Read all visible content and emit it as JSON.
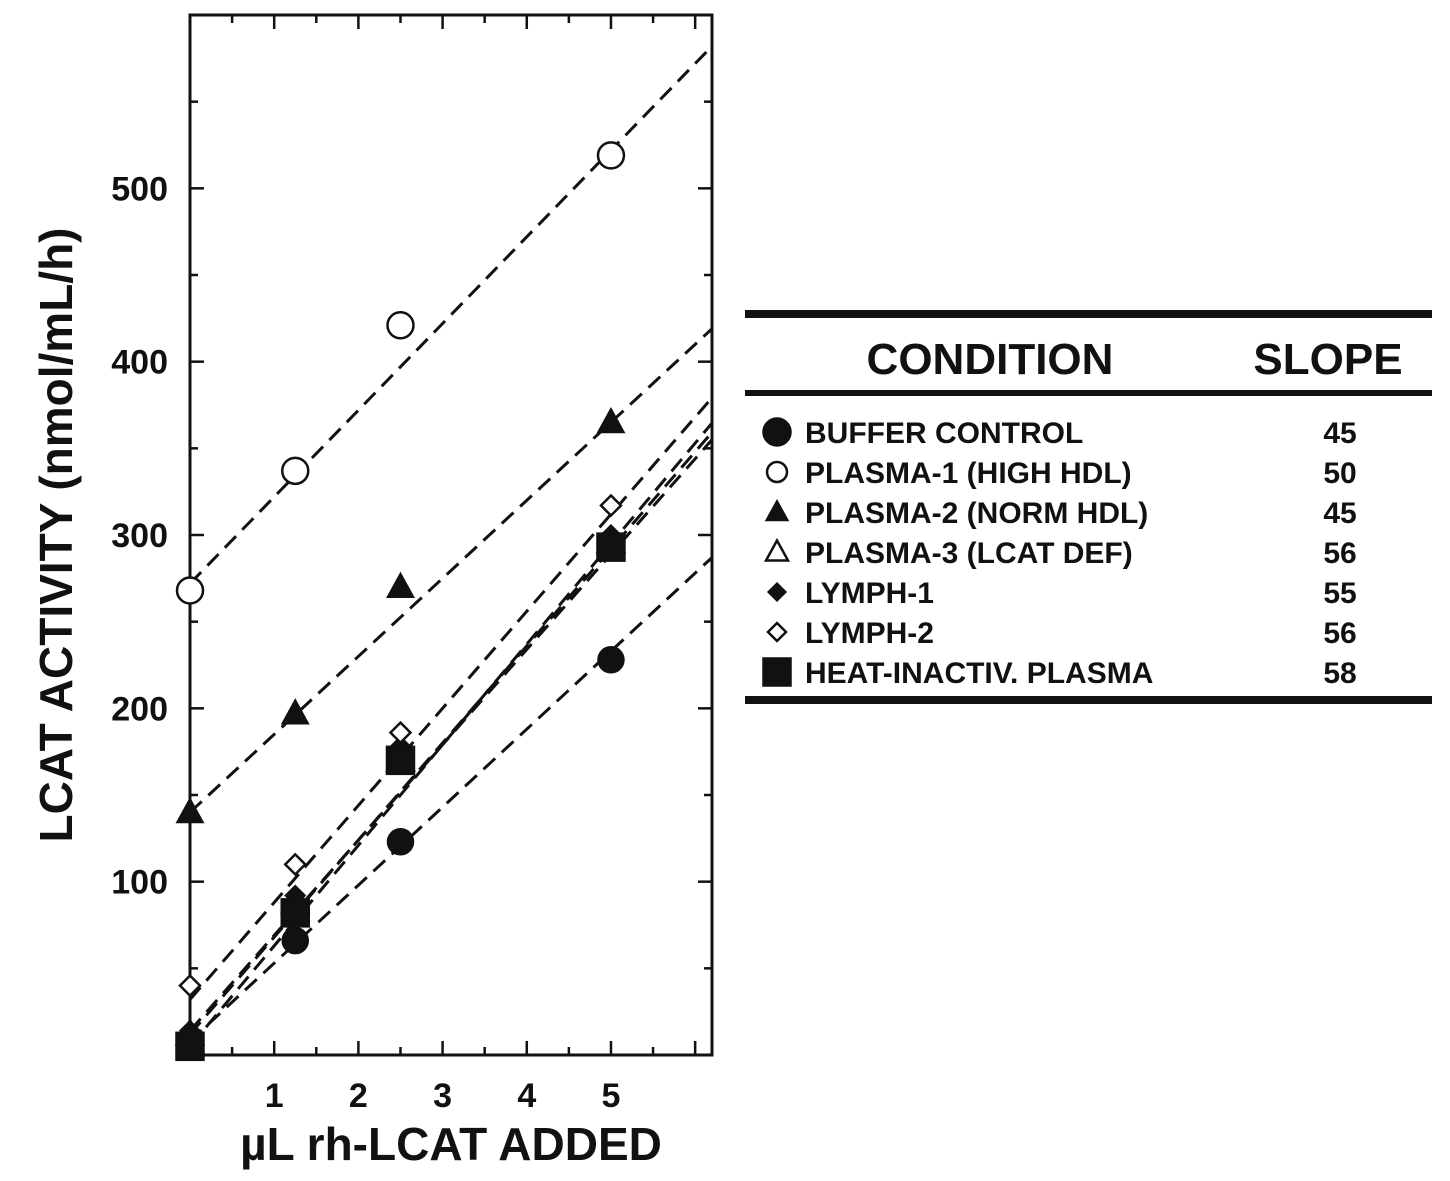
{
  "chart_data": {
    "type": "scatter",
    "xlabel": "µL rh-LCAT ADDED",
    "ylabel": "LCAT ACTIVITY (nmol/mL/h)",
    "xlim": [
      0,
      6.2
    ],
    "ylim": [
      0,
      600
    ],
    "xticks": [
      1,
      2,
      3,
      4,
      5
    ],
    "yticks": [
      100,
      200,
      300,
      400,
      500
    ],
    "grid": false,
    "fit_lines": "dashed",
    "legend": {
      "placement": "right",
      "header_condition": "CONDITION",
      "header_slope": "SLOPE"
    },
    "series": [
      {
        "name": "BUFFER CONTROL",
        "slope": "45",
        "marker": "filled-circle",
        "x": [
          0,
          1.25,
          2.5,
          5
        ],
        "y": [
          8,
          66,
          123,
          228
        ],
        "fit_y_start": 8
      },
      {
        "name": "PLASMA-1 (HIGH HDL)",
        "slope": "50",
        "marker": "open-circle",
        "x": [
          0,
          1.25,
          2.5,
          5
        ],
        "y": [
          268,
          337,
          421,
          519
        ],
        "fit_y_start": 272
      },
      {
        "name": "PLASMA-2 (NORM HDL)",
        "slope": "45",
        "marker": "filled-triangle",
        "x": [
          0,
          1.25,
          2.5,
          5
        ],
        "y": [
          140,
          197,
          270,
          365
        ],
        "fit_y_start": 140
      },
      {
        "name": "PLASMA-3 (LCAT DEF)",
        "slope": "56",
        "marker": "open-triangle",
        "x": [
          0,
          1.25,
          2.5,
          5
        ],
        "y": [
          12,
          88,
          170,
          296
        ],
        "fit_y_start": 12
      },
      {
        "name": "LYMPH-1",
        "slope": "55",
        "marker": "filled-diamond",
        "x": [
          0,
          1.25,
          2.5,
          5
        ],
        "y": [
          14,
          92,
          178,
          300
        ],
        "fit_y_start": 14
      },
      {
        "name": "LYMPH-2",
        "slope": "56",
        "marker": "open-diamond",
        "x": [
          0,
          1.25,
          2.5,
          5
        ],
        "y": [
          40,
          110,
          186,
          317
        ],
        "fit_y_start": 32
      },
      {
        "name": "HEAT-INACTIV. PLASMA",
        "slope": "58",
        "marker": "filled-square",
        "x": [
          0,
          1.25,
          2.5,
          5
        ],
        "y": [
          5,
          82,
          170,
          293
        ],
        "fit_y_start": 5
      }
    ]
  }
}
